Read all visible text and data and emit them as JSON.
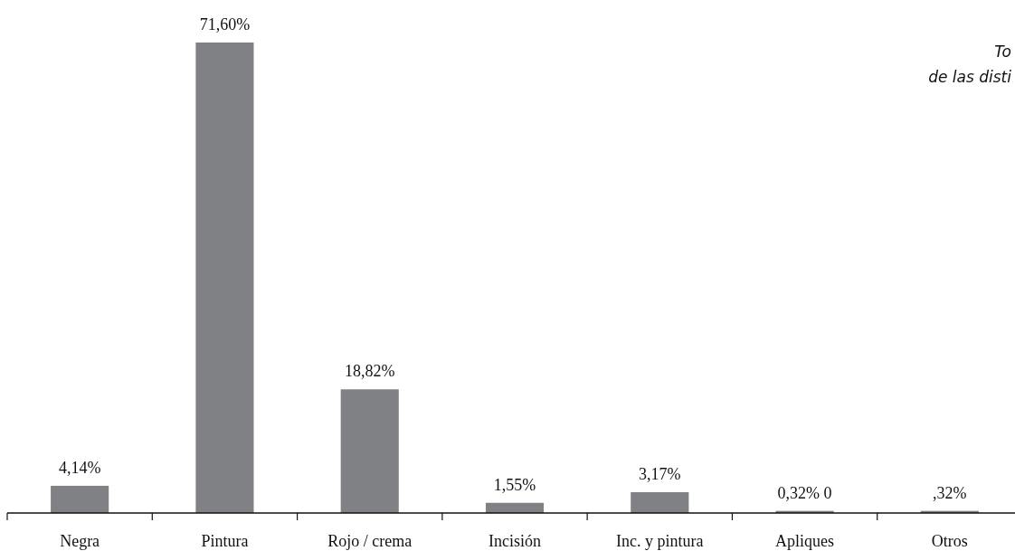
{
  "chart_data": {
    "type": "bar",
    "title": "To",
    "subtitle": "de las disti",
    "categories": [
      "Negra",
      "Pintura",
      "Rojo / crema",
      "Incisión",
      "Inc. y pintura",
      "Apliques",
      "Otros"
    ],
    "values": [
      4.14,
      71.6,
      18.82,
      1.55,
      3.17,
      0.32,
      0.32
    ],
    "value_labels": [
      "4,14%",
      "71,60%",
      "18,82%",
      "1,55%",
      "3,17%",
      "0,32% 0",
      ",32%"
    ],
    "color": "#808184"
  }
}
